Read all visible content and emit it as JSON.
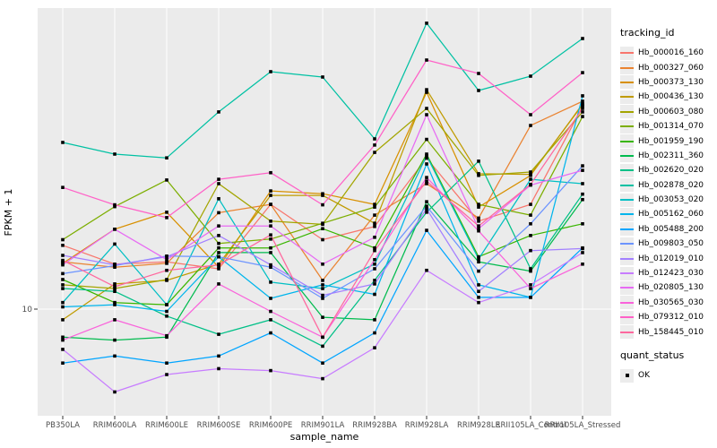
{
  "figure": {
    "panel_background": "#ebebeb",
    "gridline_color": "#ffffff",
    "point_color": "#000000",
    "tick_color": "#333333",
    "tick_label_color": "#4d4d4d"
  },
  "legend": {
    "title": "tracking_id"
  },
  "quant_legend": {
    "title": "quant_status",
    "items": [
      {
        "label": "OK"
      }
    ]
  },
  "chart_data": {
    "type": "line",
    "title": "",
    "xlabel": "sample_name",
    "ylabel": "FPKM + 1",
    "y_scale": "log10",
    "y_ticks": [
      10
    ],
    "y_tick_labels": [
      "10"
    ],
    "ylim_approx": [
      3.9,
      140
    ],
    "grid": "major-only",
    "legend_position": "right",
    "marker": "black-square",
    "categories": [
      "PB350LA",
      "RRIM600LA",
      "RRIM600LE",
      "RRIM600SE",
      "RRIM600PE",
      "RRIM901LA",
      "RRIM928BA",
      "RRIM928LA",
      "RRIM928LE",
      "RRII105LA_Control",
      "RRII105LA_Stressed"
    ],
    "series": [
      {
        "name": "Hb_000016_160",
        "color": "#F8766D",
        "values": [
          17.6,
          14.9,
          15.2,
          14.3,
          25.3,
          18.5,
          20.8,
          38.1,
          21.8,
          25.3,
          60.2
        ]
      },
      {
        "name": "Hb_000327_060",
        "color": "#EA8331",
        "values": [
          15.2,
          14.5,
          15.0,
          23.5,
          25.3,
          12.9,
          23.0,
          30.4,
          22.4,
          50.9,
          63.1
        ]
      },
      {
        "name": "Hb_000373_130",
        "color": "#D89000",
        "values": [
          15.0,
          20.3,
          23.6,
          14.5,
          28.5,
          27.8,
          25.3,
          68.3,
          24.7,
          32.7,
          61.6
        ]
      },
      {
        "name": "Hb_000436_130",
        "color": "#C09B00",
        "values": [
          9.1,
          12.5,
          12.9,
          14.9,
          27.4,
          27.4,
          21.4,
          69.9,
          33.2,
          33.0,
          61.1
        ]
      },
      {
        "name": "Hb_000603_080",
        "color": "#A3A500",
        "values": [
          12.4,
          12.0,
          13.0,
          30.4,
          21.8,
          21.2,
          40.1,
          59.2,
          32.7,
          33.7,
          57.4
        ]
      },
      {
        "name": "Hb_001314_070",
        "color": "#7CAE00",
        "values": [
          18.5,
          24.8,
          31.4,
          17.9,
          18.6,
          21.4,
          24.7,
          45.0,
          25.3,
          23.0,
          55.1
        ]
      },
      {
        "name": "Hb_001959_190",
        "color": "#39B600",
        "values": [
          13.0,
          10.6,
          10.4,
          17.2,
          17.2,
          20.4,
          17.2,
          39.5,
          15.9,
          19.2,
          21.3
        ]
      },
      {
        "name": "Hb_002311_360",
        "color": "#00BB4E",
        "values": [
          7.8,
          7.6,
          7.8,
          16.5,
          16.5,
          9.3,
          9.1,
          25.9,
          15.2,
          14.0,
          26.4
        ]
      },
      {
        "name": "Hb_002620_020",
        "color": "#00C087",
        "values": [
          12.0,
          11.7,
          9.4,
          8.0,
          9.1,
          7.2,
          12.9,
          23.6,
          37.1,
          14.3,
          27.7
        ]
      },
      {
        "name": "Hb_002878_020",
        "color": "#00C1A3",
        "values": [
          43.8,
          39.5,
          38.2,
          57.4,
          82.0,
          78.2,
          45.2,
          126.0,
          69.4,
          78.8,
          110.0
        ]
      },
      {
        "name": "Hb_003053_020",
        "color": "#00BFC4",
        "values": [
          10.6,
          17.8,
          10.4,
          26.6,
          12.7,
          12.0,
          14.9,
          38.9,
          15.6,
          31.6,
          30.4
        ]
      },
      {
        "name": "Hb_005162_060",
        "color": "#00B5EC",
        "values": [
          10.2,
          10.4,
          9.8,
          15.9,
          11.0,
          12.4,
          11.4,
          36.2,
          12.4,
          11.1,
          66.2
        ]
      },
      {
        "name": "Hb_005488_200",
        "color": "#00A5FF",
        "values": [
          6.2,
          6.6,
          6.2,
          6.6,
          8.1,
          6.2,
          8.1,
          20.1,
          11.1,
          11.1,
          17.2
        ]
      },
      {
        "name": "Hb_009803_050",
        "color": "#6C94FF",
        "values": [
          13.7,
          14.7,
          16.0,
          15.9,
          14.5,
          11.0,
          14.3,
          24.9,
          14.0,
          21.3,
          35.6
        ]
      },
      {
        "name": "Hb_012019_010",
        "color": "#A380FF",
        "values": [
          16.1,
          14.8,
          15.9,
          19.2,
          14.8,
          11.3,
          12.5,
          24.3,
          11.7,
          16.8,
          17.1
        ]
      },
      {
        "name": "Hb_012423_030",
        "color": "#C77CFF",
        "values": [
          7.0,
          4.8,
          5.6,
          5.9,
          5.8,
          5.4,
          7.1,
          14.1,
          10.6,
          12.4,
          16.5
        ]
      },
      {
        "name": "Hb_020805_130",
        "color": "#E76BF3",
        "values": [
          14.8,
          20.3,
          15.5,
          20.9,
          20.9,
          14.9,
          18.9,
          56.0,
          20.4,
          30.0,
          34.2
        ]
      },
      {
        "name": "Hb_030565_030",
        "color": "#FA62DB",
        "values": [
          7.6,
          9.1,
          7.9,
          12.5,
          9.8,
          7.8,
          15.5,
          32.1,
          20.0,
          12.0,
          14.9
        ]
      },
      {
        "name": "Hb_079312_010",
        "color": "#FF61C7",
        "values": [
          29.4,
          25.2,
          22.5,
          31.6,
          33.5,
          25.2,
          42.8,
          90.9,
          80.7,
          56.0,
          81.3
        ]
      },
      {
        "name": "Hb_158445_010",
        "color": "#FF689E",
        "values": [
          15.4,
          12.2,
          14.1,
          14.8,
          19.3,
          7.8,
          16.8,
          31.1,
          20.9,
          30.2,
          59.2
        ]
      }
    ]
  }
}
